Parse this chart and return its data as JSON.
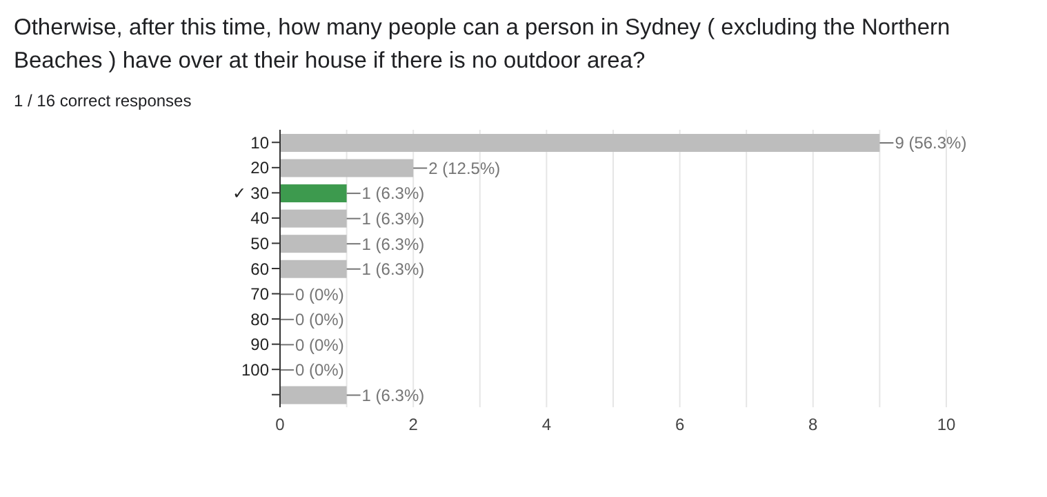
{
  "chart_data": {
    "type": "bar",
    "orientation": "horizontal",
    "title": "Otherwise, after this time, how many people can a person in Sydney ( excluding the Northern Beaches ) have over at their house if there is no outdoor area?",
    "subtitle": "1 / 16 correct responses",
    "categories": [
      "10",
      "20",
      "✓ 30",
      "40",
      "50",
      "60",
      "70",
      "80",
      "90",
      "100",
      null
    ],
    "values": [
      9,
      2,
      1,
      1,
      1,
      1,
      0,
      0,
      0,
      0,
      1
    ],
    "colors": [
      "#bdbdbd",
      "#bdbdbd",
      "#3d9a4e",
      "#bdbdbd",
      "#bdbdbd",
      "#bdbdbd",
      "#bdbdbd",
      "#bdbdbd",
      "#bdbdbd",
      "#bdbdbd",
      "#bdbdbd"
    ],
    "value_labels": [
      "9 (56.3%)",
      "2 (12.5%)",
      "1 (6.3%)",
      "1 (6.3%)",
      "1 (6.3%)",
      "1 (6.3%)",
      "0 (0%)",
      "0 (0%)",
      "0 (0%)",
      "0 (0%)",
      "1 (6.3%)"
    ],
    "xlim": [
      0,
      10
    ],
    "xticks": [
      0,
      {
        "value": 1,
        "label": null
      },
      2,
      {
        "value": 3,
        "label": null
      },
      4,
      {
        "value": 5,
        "label": null
      },
      6,
      {
        "value": 7,
        "label": null
      },
      8,
      {
        "value": 9,
        "label": null
      },
      10
    ],
    "grid": "x",
    "legend": false
  }
}
